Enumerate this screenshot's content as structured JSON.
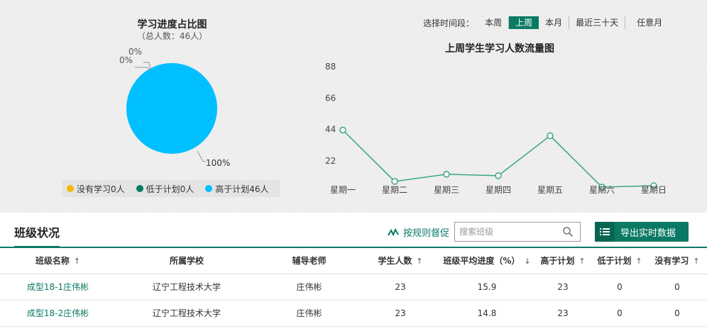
{
  "pie": {
    "title": "学习进度占比图",
    "subtitle": "（总人数：46人）",
    "labels": [
      "0%",
      "0%",
      "100%"
    ],
    "legend": [
      {
        "label": "没有学习0人",
        "color": "#f5b800"
      },
      {
        "label": "低于计划0人",
        "color": "#0a7a64"
      },
      {
        "label": "高于计划46人",
        "color": "#00bfff"
      }
    ]
  },
  "chart_data": {
    "type": "line",
    "title": "上周学生学习人数流量图",
    "categories": [
      "星期一",
      "星期二",
      "星期三",
      "星期四",
      "星期五",
      "星期六",
      "星期日"
    ],
    "values": [
      43,
      7,
      12,
      11,
      39,
      3,
      4
    ],
    "yticks": [
      "88",
      "66",
      "44",
      "22"
    ],
    "ylim": [
      0,
      88
    ],
    "color": "#3aa58a"
  },
  "time_range": {
    "label": "选择时间段：",
    "options": [
      "本周",
      "上周",
      "本月",
      "最近三十天",
      "任意月"
    ],
    "selected": "上周"
  },
  "section": {
    "title": "班级状况",
    "rule_link": "按规则督促",
    "search_placeholder": "搜索班级",
    "export_label": "导出实时数据"
  },
  "table": {
    "headers": [
      "班级名称",
      "所属学校",
      "辅导老师",
      "学生人数",
      "班级平均进度（%）",
      "高于计划",
      "低于计划",
      "没有学习"
    ],
    "sort_glyphs": [
      "↑",
      "",
      "",
      "↑",
      "↓",
      "↑",
      "↑",
      "↑"
    ],
    "rows": [
      [
        "成型18-1庄伟彬",
        "辽宁工程技术大学",
        "庄伟彬",
        "23",
        "15.9",
        "23",
        "0",
        "0"
      ],
      [
        "成型18-2庄伟彬",
        "辽宁工程技术大学",
        "庄伟彬",
        "23",
        "14.8",
        "23",
        "0",
        "0"
      ]
    ]
  }
}
